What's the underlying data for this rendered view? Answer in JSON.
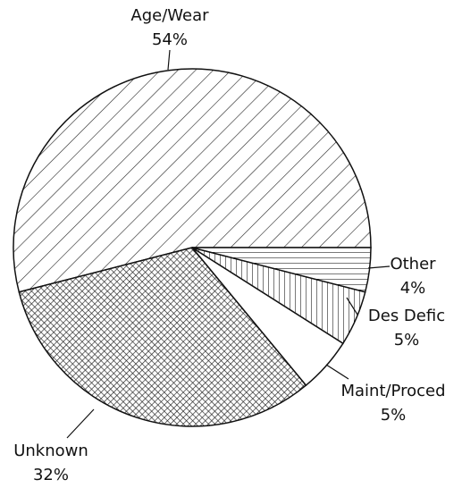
{
  "chart_data": {
    "type": "pie",
    "categories": [
      "Age/Wear",
      "Unknown",
      "Maint/Proced",
      "Des Defic",
      "Other"
    ],
    "values": [
      54,
      32,
      5,
      5,
      4
    ],
    "value_labels": [
      "54%",
      "32%",
      "5%",
      "5%",
      "4%"
    ],
    "patterns": [
      "diagonal",
      "crosshatch",
      "none",
      "vertical",
      "horizontal"
    ]
  }
}
